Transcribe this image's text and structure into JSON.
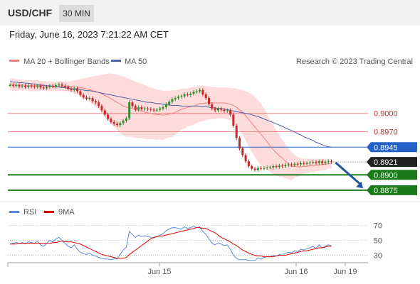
{
  "header": {
    "pair": "USD/CHF",
    "timeframe": "30 MIN"
  },
  "datetime": "Friday, June 16, 2023 7:21:22 AM CET",
  "legend": {
    "bb_label": "MA 20 + Bollinger Bands",
    "ma50_label": "MA 50",
    "credit": "Research © 2023 Trading Central",
    "rsi_label": "RSI",
    "rsi_ma_label": "9MA"
  },
  "colors": {
    "up": "#2e8b2e",
    "down": "#c62828",
    "band": "#ffd6d6",
    "ma20": "#f08080",
    "ma50": "#4a5fa8",
    "resistance": "#f08080",
    "support": "#1a7a1a",
    "pivot": "#2462c8",
    "current": "#222222",
    "rsi": "#5b8ad8",
    "rsi_ma": "#dd0000",
    "arrow": "#2155a0"
  },
  "chart_data": [
    {
      "type": "candlestick",
      "ylim": [
        0.8861,
        0.9069
      ],
      "x_ticks": [
        "Jun 15",
        "Jun 16",
        "Jun 19"
      ],
      "levels": [
        {
          "value": 0.9,
          "label": "0.9000",
          "kind": "resistance"
        },
        {
          "value": 0.897,
          "label": "0.8970",
          "kind": "resistance"
        },
        {
          "value": 0.8945,
          "label": "0.8945",
          "kind": "pivot"
        },
        {
          "value": 0.8921,
          "label": "0.8921",
          "kind": "current"
        },
        {
          "value": 0.89,
          "label": "0.8900",
          "kind": "support"
        },
        {
          "value": 0.8875,
          "label": "0.8875",
          "kind": "support"
        }
      ],
      "closes": [
        0.9046,
        0.9045,
        0.9046,
        0.9044,
        0.9045,
        0.9043,
        0.9045,
        0.9044,
        0.9043,
        0.9045,
        0.9042,
        0.9041,
        0.9043,
        0.9045,
        0.9044,
        0.9046,
        0.9047,
        0.9045,
        0.9043,
        0.904,
        0.9038,
        0.9041,
        0.9036,
        0.903,
        0.9026,
        0.9024,
        0.9025,
        0.902,
        0.9018,
        0.9012,
        0.9005,
        0.8998,
        0.8991,
        0.8986,
        0.8983,
        0.8981,
        0.8984,
        0.8988,
        0.8992,
        0.9018,
        0.9012,
        0.9006,
        0.901,
        0.9007,
        0.9008,
        0.9007,
        0.9006,
        0.9005,
        0.9006,
        0.9008,
        0.901,
        0.9015,
        0.9019,
        0.9023,
        0.9025,
        0.9027,
        0.9028,
        0.9031,
        0.903,
        0.9032,
        0.9035,
        0.9036,
        0.9038,
        0.9031,
        0.9025,
        0.9015,
        0.9008,
        0.9005,
        0.9008,
        0.9006,
        0.9004,
        0.9005,
        0.8998,
        0.898,
        0.896,
        0.8943,
        0.8932,
        0.8922,
        0.8914,
        0.891,
        0.8908,
        0.8911,
        0.891,
        0.8911,
        0.8912,
        0.8912,
        0.8914,
        0.8913,
        0.8915,
        0.8914,
        0.8916,
        0.8917,
        0.8916,
        0.8918,
        0.8917,
        0.8919,
        0.8918,
        0.8919,
        0.892,
        0.8921,
        0.8919,
        0.8922,
        0.8919,
        0.8921,
        0.8922,
        0.8921
      ],
      "series": [
        {
          "name": "MA 20",
          "values": [
            0.9047,
            0.9047,
            0.9046,
            0.9046,
            0.9046,
            0.9046,
            0.9045,
            0.9045,
            0.9045,
            0.9045,
            0.9045,
            0.9045,
            0.9044,
            0.9044,
            0.9044,
            0.9044,
            0.9044,
            0.9044,
            0.9044,
            0.9044,
            0.9044,
            0.9043,
            0.9043,
            0.9042,
            0.9041,
            0.904,
            0.9039,
            0.9037,
            0.9036,
            0.9034,
            0.9032,
            0.9029,
            0.9027,
            0.9024,
            0.9021,
            0.9018,
            0.9015,
            0.9012,
            0.901,
            0.9009,
            0.9008,
            0.9006,
            0.9005,
            0.9004,
            0.9002,
            0.9001,
            0.9,
            0.8999,
            0.8998,
            0.8998,
            0.8997,
            0.8998,
            0.8999,
            0.9,
            0.9002,
            0.9004,
            0.9007,
            0.9008,
            0.901,
            0.9011,
            0.9012,
            0.9014,
            0.9016,
            0.9016,
            0.9017,
            0.9017,
            0.9017,
            0.9017,
            0.9017,
            0.9017,
            0.9017,
            0.9016,
            0.9015,
            0.9013,
            0.901,
            0.9006,
            0.9002,
            0.8996,
            0.899,
            0.8984,
            0.8978,
            0.8972,
            0.8966,
            0.896,
            0.8954,
            0.8947,
            0.8941,
            0.8936,
            0.8931,
            0.8927,
            0.8922,
            0.8918,
            0.8914,
            0.8914,
            0.8913,
            0.8913,
            0.8914,
            0.8914,
            0.8915,
            0.8915,
            0.8916,
            0.8916,
            0.8917,
            0.8917,
            0.8918,
            0.8918
          ]
        },
        {
          "name": "MA 50",
          "values": [
            0.9052,
            0.9051,
            0.9051,
            0.905,
            0.905,
            0.9049,
            0.9049,
            0.9048,
            0.9048,
            0.9047,
            0.9046,
            0.9046,
            0.9045,
            0.9045,
            0.9044,
            0.9043,
            0.9043,
            0.9042,
            0.9042,
            0.9041,
            0.904,
            0.904,
            0.9039,
            0.9039,
            0.9038,
            0.9037,
            0.9037,
            0.9036,
            0.9035,
            0.9034,
            0.9033,
            0.9032,
            0.9031,
            0.903,
            0.9029,
            0.9028,
            0.9027,
            0.9026,
            0.9025,
            0.9024,
            0.9023,
            0.9022,
            0.9021,
            0.902,
            0.9019,
            0.9018,
            0.9018,
            0.9017,
            0.9016,
            0.9016,
            0.9015,
            0.9014,
            0.9014,
            0.9013,
            0.9013,
            0.9013,
            0.9012,
            0.9012,
            0.9012,
            0.9012,
            0.9012,
            0.9012,
            0.9012,
            0.9011,
            0.9011,
            0.901,
            0.9009,
            0.9009,
            0.9008,
            0.9008,
            0.9007,
            0.9006,
            0.9005,
            0.9004,
            0.9003,
            0.9002,
            0.9001,
            0.9,
            0.8999,
            0.8998,
            0.8996,
            0.8995,
            0.8993,
            0.8991,
            0.8989,
            0.8987,
            0.8985,
            0.8983,
            0.8981,
            0.8979,
            0.8976,
            0.8974,
            0.8972,
            0.897,
            0.8967,
            0.8965,
            0.8962,
            0.896,
            0.8958,
            0.8956,
            0.8953,
            0.8951,
            0.8949,
            0.8947,
            0.8946,
            0.8945
          ]
        },
        {
          "name": "Bollinger Upper",
          "values": [
            0.9056,
            0.9057,
            0.9056,
            0.9055,
            0.9055,
            0.9054,
            0.9054,
            0.9054,
            0.9054,
            0.9054,
            0.9053,
            0.9053,
            0.9052,
            0.9052,
            0.9052,
            0.9052,
            0.9052,
            0.9052,
            0.9052,
            0.9052,
            0.9053,
            0.9054,
            0.9055,
            0.9056,
            0.9057,
            0.9058,
            0.9059,
            0.906,
            0.9061,
            0.9062,
            0.9063,
            0.9064,
            0.9065,
            0.9065,
            0.9064,
            0.9063,
            0.9062,
            0.906,
            0.9058,
            0.9056,
            0.9054,
            0.9052,
            0.905,
            0.9048,
            0.9046,
            0.9044,
            0.9042,
            0.904,
            0.9039,
            0.9038,
            0.9037,
            0.9037,
            0.9037,
            0.9038,
            0.9038,
            0.9039,
            0.904,
            0.9041,
            0.9041,
            0.9042,
            0.9043,
            0.9044,
            0.9045,
            0.9045,
            0.9045,
            0.9044,
            0.9043,
            0.9043,
            0.9042,
            0.9042,
            0.9042,
            0.9042,
            0.9041,
            0.9041,
            0.904,
            0.9039,
            0.9038,
            0.9036,
            0.9034,
            0.9031,
            0.9027,
            0.9022,
            0.9016,
            0.9008,
            0.8999,
            0.899,
            0.8981,
            0.8973,
            0.8965,
            0.8957,
            0.895,
            0.8943,
            0.8937,
            0.8932,
            0.8929,
            0.8927,
            0.8926,
            0.8926,
            0.8926,
            0.8926,
            0.8926,
            0.8926,
            0.8926,
            0.8926,
            0.8926,
            0.8926
          ]
        },
        {
          "name": "Bollinger Lower",
          "values": [
            0.9038,
            0.9037,
            0.9036,
            0.9037,
            0.9037,
            0.9038,
            0.9036,
            0.9036,
            0.9036,
            0.9036,
            0.9037,
            0.9037,
            0.9036,
            0.9036,
            0.9036,
            0.9036,
            0.9036,
            0.9036,
            0.9036,
            0.9036,
            0.9035,
            0.9032,
            0.9031,
            0.9028,
            0.9025,
            0.9022,
            0.9019,
            0.9014,
            0.9011,
            0.9006,
            0.9001,
            0.8994,
            0.8989,
            0.8983,
            0.8978,
            0.8973,
            0.8968,
            0.8964,
            0.8962,
            0.8962,
            0.8962,
            0.896,
            0.896,
            0.896,
            0.8958,
            0.8958,
            0.8958,
            0.8958,
            0.8957,
            0.8958,
            0.8957,
            0.8959,
            0.8961,
            0.8962,
            0.8966,
            0.8969,
            0.8974,
            0.8975,
            0.8979,
            0.898,
            0.8981,
            0.8984,
            0.8987,
            0.8987,
            0.8989,
            0.899,
            0.8991,
            0.8991,
            0.8992,
            0.8992,
            0.8992,
            0.899,
            0.8989,
            0.8985,
            0.898,
            0.8973,
            0.8966,
            0.8956,
            0.8946,
            0.8937,
            0.8929,
            0.8922,
            0.8916,
            0.8912,
            0.8909,
            0.8904,
            0.8901,
            0.8899,
            0.8897,
            0.8897,
            0.8894,
            0.8893,
            0.8891,
            0.8896,
            0.8897,
            0.8899,
            0.8902,
            0.8902,
            0.8904,
            0.8904,
            0.8906,
            0.8906,
            0.8908,
            0.8908,
            0.891,
            0.891
          ]
        }
      ],
      "forecast": {
        "from": 0.892,
        "to": 0.8878
      }
    },
    {
      "type": "line",
      "ylim": [
        20,
        80
      ],
      "y_ticks": [
        "70",
        "50",
        "30"
      ],
      "series": [
        {
          "name": "RSI",
          "values": [
            45,
            46,
            47,
            46,
            47,
            45,
            48,
            47,
            46,
            49,
            44,
            42,
            46,
            50,
            48,
            52,
            54,
            50,
            46,
            42,
            40,
            44,
            38,
            34,
            32,
            31,
            33,
            30,
            29,
            27,
            26,
            25,
            25,
            24,
            25,
            25,
            31,
            37,
            41,
            62,
            58,
            54,
            57,
            55,
            56,
            55,
            54,
            53,
            55,
            57,
            59,
            63,
            65,
            67,
            67,
            66,
            65,
            68,
            66,
            67,
            69,
            67,
            68,
            62,
            58,
            52,
            46,
            44,
            47,
            45,
            43,
            44,
            38,
            30,
            26,
            24,
            24,
            24,
            23,
            23,
            23,
            26,
            25,
            27,
            28,
            28,
            30,
            29,
            31,
            30,
            33,
            34,
            33,
            36,
            35,
            38,
            37,
            39,
            40,
            42,
            39,
            44,
            40,
            42,
            44,
            43
          ]
        },
        {
          "name": "9MA",
          "values": [
            45,
            45,
            45,
            46,
            46,
            46,
            46,
            46,
            46,
            46,
            46,
            46,
            46,
            46,
            47,
            47,
            48,
            49,
            48,
            48,
            48,
            47,
            46,
            45,
            43,
            41,
            39,
            37,
            35,
            33,
            31,
            30,
            29,
            28,
            27,
            26,
            26,
            26,
            27,
            31,
            34,
            37,
            40,
            43,
            46,
            49,
            52,
            54,
            55,
            56,
            56,
            57,
            58,
            59,
            60,
            61,
            62,
            63,
            64,
            65,
            66,
            67,
            67,
            66,
            66,
            64,
            62,
            60,
            57,
            54,
            52,
            50,
            48,
            45,
            43,
            40,
            37,
            35,
            33,
            31,
            30,
            29,
            29,
            28,
            28,
            28,
            28,
            29,
            30,
            30,
            30,
            31,
            32,
            33,
            34,
            35,
            36,
            36,
            37,
            38,
            39,
            40,
            40,
            41,
            42,
            42
          ]
        }
      ]
    }
  ]
}
